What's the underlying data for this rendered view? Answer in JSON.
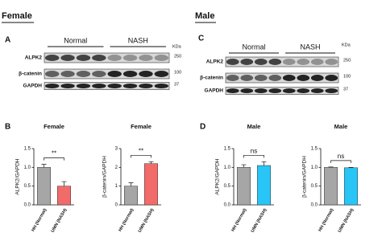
{
  "sections": {
    "female": "Female",
    "male": "Male"
  },
  "panels": {
    "a": "A",
    "b": "B",
    "c": "C",
    "d": "D"
  },
  "blots": [
    {
      "groups": [
        "Normal",
        "NASH"
      ],
      "unit": "KDa",
      "rows": [
        {
          "label": "ALPK2",
          "size": 250
        },
        {
          "label": "β-catenin",
          "size": 100
        },
        {
          "label": "GAPDH",
          "size": 37
        }
      ]
    },
    {
      "groups": [
        "Normal",
        "NASH"
      ],
      "unit": "KDa",
      "rows": [
        {
          "label": "ALPK2",
          "size": 250
        },
        {
          "label": "β-catenin",
          "size": 100
        },
        {
          "label": "GAPDH",
          "size": 37
        }
      ]
    }
  ],
  "chart_data": [
    {
      "type": "bar",
      "title": "Female",
      "y_label": "ALPK2/GAPDH",
      "categories": [
        "HH (Normal)",
        "UMN (NASH)"
      ],
      "values": [
        1.0,
        0.5
      ],
      "errors": [
        0.08,
        0.12
      ],
      "colors": [
        "#a6a6a6",
        "#f26b6b"
      ],
      "annotation": "**",
      "ylim": [
        0,
        1.5
      ],
      "yticks": [
        {
          "value": 0,
          "label": "0.0"
        },
        {
          "value": 0.5,
          "label": "0.5"
        },
        {
          "value": 1,
          "label": "1.0"
        },
        {
          "value": 1.5,
          "label": "1.5"
        }
      ]
    },
    {
      "type": "bar",
      "title": "Female",
      "y_label": "β-catenin/GAPDH",
      "categories": [
        "HH (Normal)",
        "UMN (NASH)"
      ],
      "values": [
        1.0,
        2.2
      ],
      "errors": [
        0.18,
        0.1
      ],
      "colors": [
        "#a6a6a6",
        "#f26b6b"
      ],
      "annotation": "**",
      "ylim": [
        0,
        3
      ],
      "yticks": [
        0,
        1,
        2,
        3
      ]
    },
    {
      "type": "bar",
      "title": "Male",
      "y_label": "ALPK2/GAPDH",
      "categories": [
        "HH (Normal)",
        "UMN (NASH)"
      ],
      "values": [
        1.0,
        1.05
      ],
      "errors": [
        0.07,
        0.1
      ],
      "colors": [
        "#a6a6a6",
        "#29c5f6"
      ],
      "annotation": "ns",
      "ylim": [
        0,
        1.5
      ],
      "yticks": [
        {
          "value": 0,
          "label": "0.0"
        },
        {
          "value": 0.5,
          "label": "0.5"
        },
        {
          "value": 1,
          "label": "1.0"
        },
        {
          "value": 1.5,
          "label": "1.5"
        }
      ]
    },
    {
      "type": "bar",
      "title": "Male",
      "y_label": "β-catenin/GAPDH",
      "categories": [
        "HH (Normal)",
        "UMN (NASH)"
      ],
      "values": [
        1.0,
        0.99
      ],
      "errors": [
        0.01,
        0.01
      ],
      "colors": [
        "#a6a6a6",
        "#29c5f6"
      ],
      "annotation": "ns",
      "ylim": [
        0,
        1.5
      ],
      "yticks": [
        {
          "value": 0,
          "label": "0.0"
        },
        {
          "value": 0.5,
          "label": "0.5"
        },
        {
          "value": 1,
          "label": "1.0"
        },
        {
          "value": 1.5,
          "label": "1.5"
        }
      ]
    }
  ]
}
